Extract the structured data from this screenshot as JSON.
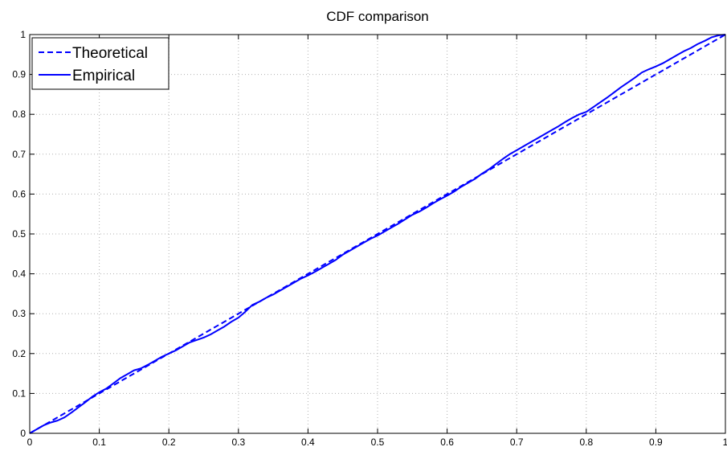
{
  "chart_data": {
    "type": "line",
    "title": "CDF comparison",
    "xlabel": "",
    "ylabel": "",
    "xlim": [
      0,
      1
    ],
    "ylim": [
      0,
      1
    ],
    "xticks": [
      0,
      0.1,
      0.2,
      0.3,
      0.4,
      0.5,
      0.6,
      0.7,
      0.8,
      0.9,
      1
    ],
    "yticks": [
      0,
      0.1,
      0.2,
      0.3,
      0.4,
      0.5,
      0.6,
      0.7,
      0.8,
      0.9,
      1
    ],
    "xtick_labels": [
      "0",
      "0.1",
      "0.2",
      "0.3",
      "0.4",
      "0.5",
      "0.6",
      "0.7",
      "0.8",
      "0.9",
      "1"
    ],
    "ytick_labels": [
      "0",
      "0.1",
      "0.2",
      "0.3",
      "0.4",
      "0.5",
      "0.6",
      "0.7",
      "0.8",
      "0.9",
      "1"
    ],
    "grid": true,
    "legend_position": "top-left",
    "series": [
      {
        "name": "Theoretical",
        "style": "dashed",
        "color": "#0000ff",
        "x": [
          0,
          1
        ],
        "y": [
          0,
          1
        ]
      },
      {
        "name": "Empirical",
        "style": "solid",
        "color": "#0000ff",
        "x": [
          0,
          0.01,
          0.02,
          0.03,
          0.04,
          0.05,
          0.06,
          0.07,
          0.08,
          0.09,
          0.1,
          0.11,
          0.12,
          0.13,
          0.14,
          0.15,
          0.16,
          0.17,
          0.18,
          0.19,
          0.2,
          0.21,
          0.22,
          0.23,
          0.24,
          0.25,
          0.26,
          0.27,
          0.28,
          0.29,
          0.3,
          0.31,
          0.32,
          0.33,
          0.34,
          0.35,
          0.36,
          0.37,
          0.38,
          0.39,
          0.4,
          0.41,
          0.42,
          0.43,
          0.44,
          0.45,
          0.46,
          0.47,
          0.48,
          0.49,
          0.5,
          0.51,
          0.52,
          0.53,
          0.54,
          0.55,
          0.56,
          0.57,
          0.58,
          0.59,
          0.6,
          0.61,
          0.62,
          0.63,
          0.64,
          0.65,
          0.66,
          0.67,
          0.68,
          0.69,
          0.7,
          0.71,
          0.72,
          0.73,
          0.74,
          0.75,
          0.76,
          0.77,
          0.78,
          0.79,
          0.8,
          0.81,
          0.82,
          0.83,
          0.84,
          0.85,
          0.86,
          0.87,
          0.88,
          0.89,
          0.9,
          0.91,
          0.92,
          0.93,
          0.94,
          0.95,
          0.96,
          0.97,
          0.98,
          0.99,
          1.0
        ],
        "y": [
          0,
          0.01,
          0.02,
          0.027,
          0.032,
          0.04,
          0.052,
          0.065,
          0.078,
          0.092,
          0.103,
          0.112,
          0.125,
          0.138,
          0.148,
          0.158,
          0.163,
          0.172,
          0.182,
          0.192,
          0.2,
          0.208,
          0.218,
          0.228,
          0.234,
          0.24,
          0.248,
          0.258,
          0.268,
          0.28,
          0.29,
          0.305,
          0.322,
          0.33,
          0.34,
          0.348,
          0.358,
          0.368,
          0.378,
          0.388,
          0.396,
          0.405,
          0.415,
          0.425,
          0.435,
          0.448,
          0.458,
          0.468,
          0.478,
          0.488,
          0.496,
          0.506,
          0.516,
          0.526,
          0.537,
          0.548,
          0.556,
          0.566,
          0.577,
          0.587,
          0.596,
          0.606,
          0.618,
          0.628,
          0.638,
          0.651,
          0.662,
          0.675,
          0.688,
          0.7,
          0.71,
          0.72,
          0.73,
          0.74,
          0.75,
          0.76,
          0.77,
          0.781,
          0.791,
          0.8,
          0.806,
          0.818,
          0.83,
          0.842,
          0.855,
          0.868,
          0.88,
          0.892,
          0.905,
          0.913,
          0.92,
          0.928,
          0.938,
          0.948,
          0.958,
          0.966,
          0.976,
          0.984,
          0.993,
          0.998,
          1.0
        ]
      }
    ]
  }
}
